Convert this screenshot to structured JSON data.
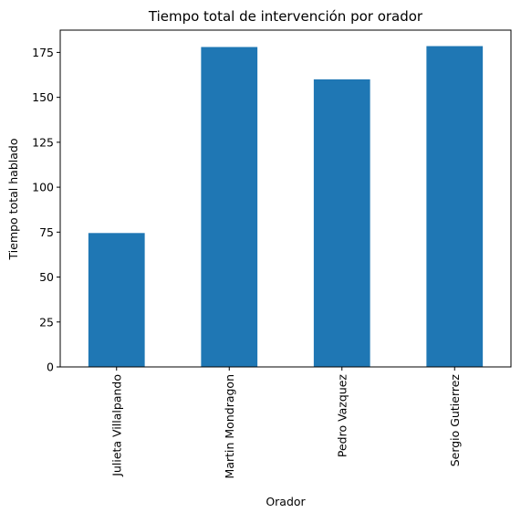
{
  "chart_data": {
    "type": "bar",
    "title": "Tiempo total de intervención por orador",
    "xlabel": "Orador",
    "ylabel": "Tiempo total hablado",
    "categories": [
      "Julieta Villalpando",
      "Martin Mondragon",
      "Pedro Vazquez",
      "Sergio Gutierrez"
    ],
    "values": [
      74.5,
      178,
      160,
      178.5
    ],
    "ylim": [
      0,
      187.4
    ],
    "yticks": [
      0,
      25,
      50,
      75,
      100,
      125,
      150,
      175
    ],
    "bar_color": "#1f77b4",
    "grid": false,
    "legend": false
  }
}
